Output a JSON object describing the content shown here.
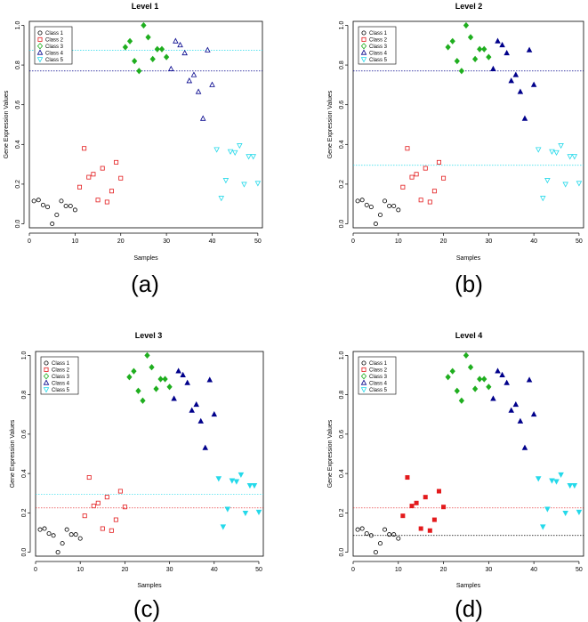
{
  "figure": {
    "captions": [
      "(a)",
      "(b)",
      "(c)",
      "(d)"
    ]
  },
  "colors": {
    "class1": "#000000",
    "class2": "#e31a1c",
    "class3": "#1fae1f",
    "class4": "#00008b",
    "class5": "#25d9ea"
  },
  "legend_labels": [
    "Class 1",
    "Class 2",
    "Class 3",
    "Class 4",
    "Class 5"
  ],
  "chart_data": [
    {
      "type": "scatter",
      "title": "Level 1",
      "xlabel": "Samples",
      "ylabel": "Gene Expression Values",
      "xlim": [
        0,
        51
      ],
      "ylim": [
        -0.02,
        1.02
      ],
      "xticks": [
        "0",
        "10",
        "20",
        "30",
        "40",
        "50"
      ],
      "yticks": [
        "0.0",
        "0.2",
        "0.4",
        "0.6",
        "0.8",
        "1.0"
      ],
      "legend_position": "top-left",
      "filled": [
        false,
        false,
        true,
        false,
        false
      ],
      "thresholds": [
        {
          "value": 0.875,
          "color": "#25d9ea"
        },
        {
          "value": 0.77,
          "color": "#00008b"
        }
      ]
    },
    {
      "type": "scatter",
      "title": "Level 2",
      "xlabel": "Samples",
      "ylabel": "Gene Expression Values",
      "xlim": [
        0,
        51
      ],
      "ylim": [
        -0.02,
        1.02
      ],
      "xticks": [
        "0",
        "10",
        "20",
        "30",
        "40",
        "50"
      ],
      "yticks": [
        "0.0",
        "0.2",
        "0.4",
        "0.6",
        "0.8",
        "1.0"
      ],
      "legend_position": "top-left",
      "filled": [
        false,
        false,
        true,
        true,
        false
      ],
      "thresholds": [
        {
          "value": 0.77,
          "color": "#00008b"
        },
        {
          "value": 0.295,
          "color": "#25d9ea"
        }
      ]
    },
    {
      "type": "scatter",
      "title": "Level 3",
      "xlabel": "Samples",
      "ylabel": "Gene Expression Values",
      "xlim": [
        0,
        51
      ],
      "ylim": [
        -0.02,
        1.02
      ],
      "xticks": [
        "0",
        "10",
        "20",
        "30",
        "40",
        "50"
      ],
      "yticks": [
        "0.0",
        "0.2",
        "0.4",
        "0.6",
        "0.8",
        "1.0"
      ],
      "legend_position": "top-left",
      "filled": [
        false,
        false,
        true,
        true,
        true
      ],
      "thresholds": [
        {
          "value": 0.295,
          "color": "#25d9ea"
        },
        {
          "value": 0.225,
          "color": "#e31a1c"
        }
      ]
    },
    {
      "type": "scatter",
      "title": "Level 4",
      "xlabel": "Samples",
      "ylabel": "Gene Expression Values",
      "xlim": [
        0,
        51
      ],
      "ylim": [
        -0.02,
        1.02
      ],
      "xticks": [
        "0",
        "10",
        "20",
        "30",
        "40",
        "50"
      ],
      "yticks": [
        "0.0",
        "0.2",
        "0.4",
        "0.6",
        "0.8",
        "1.0"
      ],
      "legend_position": "top-left",
      "filled": [
        false,
        true,
        true,
        true,
        true
      ],
      "thresholds": [
        {
          "value": 0.225,
          "color": "#e31a1c"
        },
        {
          "value": 0.085,
          "color": "#000000"
        }
      ]
    }
  ],
  "series": [
    {
      "name": "Class 1",
      "marker": "circle",
      "x": [
        1,
        2,
        3,
        4,
        5,
        6,
        7,
        8,
        9,
        10
      ],
      "y": [
        0.115,
        0.12,
        0.095,
        0.085,
        0.0,
        0.045,
        0.115,
        0.09,
        0.09,
        0.07
      ]
    },
    {
      "name": "Class 2",
      "marker": "square",
      "x": [
        11,
        12,
        13,
        14,
        15,
        16,
        17,
        18,
        19,
        20
      ],
      "y": [
        0.185,
        0.38,
        0.235,
        0.25,
        0.12,
        0.28,
        0.11,
        0.165,
        0.31,
        0.23
      ]
    },
    {
      "name": "Class 3",
      "marker": "diamond",
      "x": [
        21,
        22,
        23,
        24,
        25,
        26,
        27,
        28,
        29,
        30
      ],
      "y": [
        0.89,
        0.92,
        0.82,
        0.77,
        1.0,
        0.94,
        0.83,
        0.88,
        0.88,
        0.84
      ]
    },
    {
      "name": "Class 4",
      "marker": "triangle-up",
      "x": [
        31,
        32,
        33,
        34,
        35,
        36,
        37,
        38,
        39,
        40
      ],
      "y": [
        0.78,
        0.92,
        0.9,
        0.86,
        0.72,
        0.75,
        0.665,
        0.53,
        0.875,
        0.7
      ]
    },
    {
      "name": "Class 5",
      "marker": "triangle-down",
      "x": [
        41,
        42,
        43,
        44,
        45,
        46,
        47,
        48,
        49,
        50
      ],
      "y": [
        0.375,
        0.13,
        0.22,
        0.365,
        0.36,
        0.395,
        0.2,
        0.34,
        0.34,
        0.205
      ]
    }
  ]
}
